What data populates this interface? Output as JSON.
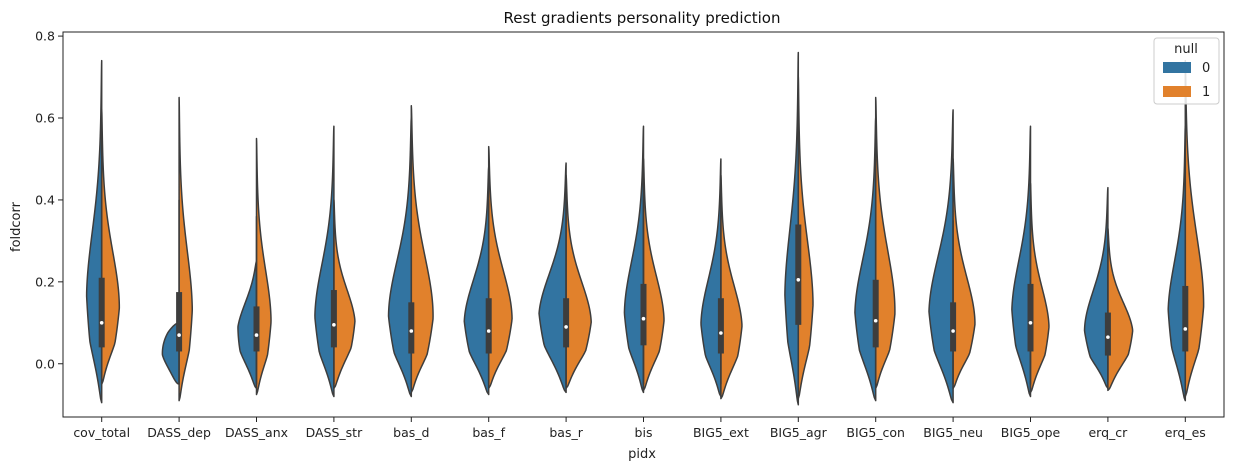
{
  "chart_data": {
    "type": "violin",
    "split": true,
    "title": "Rest gradients personality prediction",
    "xlabel": "pidx",
    "ylabel": "foldcorr",
    "ylim": [
      -0.13,
      0.81
    ],
    "yticks": [
      "0.0",
      "0.2",
      "0.4",
      "0.6",
      "0.8"
    ],
    "ytick_values": [
      0.0,
      0.2,
      0.4,
      0.6,
      0.8
    ],
    "grid": false,
    "legend": {
      "title": "null",
      "placement": "top-right",
      "entries": [
        {
          "label": "0",
          "color": "#3274a1"
        },
        {
          "label": "1",
          "color": "#e1812c"
        }
      ]
    },
    "categories": [
      "cov_total",
      "DASS_dep",
      "DASS_anx",
      "DASS_str",
      "bas_d",
      "bas_f",
      "bas_r",
      "bis",
      "BIG5_ext",
      "BIG5_agr",
      "BIG5_con",
      "BIG5_neu",
      "BIG5_ope",
      "erq_cr",
      "erq_es"
    ],
    "series": [
      {
        "name": "0",
        "color": "#3274a1",
        "side": "left",
        "min": [
          -0.095,
          -0.05,
          -0.06,
          -0.08,
          -0.08,
          -0.075,
          -0.07,
          -0.07,
          -0.08,
          -0.1,
          -0.09,
          -0.095,
          -0.08,
          -0.06,
          -0.09
        ],
        "max": [
          0.74,
          0.1,
          0.25,
          0.58,
          0.6,
          0.48,
          0.49,
          0.58,
          0.5,
          0.76,
          0.6,
          0.62,
          0.58,
          0.43,
          0.58
        ],
        "mode": [
          0.1,
          0.05,
          0.06,
          0.06,
          0.06,
          0.06,
          0.08,
          0.07,
          0.05,
          0.1,
          0.07,
          0.07,
          0.08,
          0.04,
          0.08
        ],
        "peak_width": [
          0.45,
          0.45,
          0.5,
          0.58,
          0.7,
          0.72,
          0.78,
          0.58,
          0.6,
          0.4,
          0.62,
          0.72,
          0.55,
          0.72,
          0.5
        ]
      },
      {
        "name": "1",
        "color": "#e1812c",
        "side": "right",
        "min": [
          -0.05,
          -0.09,
          -0.075,
          -0.06,
          -0.07,
          -0.06,
          -0.06,
          -0.065,
          -0.085,
          -0.085,
          -0.06,
          -0.06,
          -0.07,
          -0.065,
          -0.08
        ],
        "max": [
          0.62,
          0.65,
          0.55,
          0.4,
          0.63,
          0.53,
          0.46,
          0.5,
          0.46,
          0.7,
          0.65,
          0.5,
          0.44,
          0.33,
          0.74
        ],
        "mode": [
          0.08,
          0.07,
          0.05,
          0.07,
          0.05,
          0.06,
          0.06,
          0.06,
          0.05,
          0.08,
          0.06,
          0.05,
          0.05,
          0.05,
          0.07
        ],
        "peak_width": [
          0.55,
          0.4,
          0.45,
          0.6,
          0.7,
          0.72,
          0.75,
          0.62,
          0.62,
          0.45,
          0.62,
          0.68,
          0.55,
          0.7,
          0.58
        ]
      }
    ],
    "box": {
      "q1": [
        0.04,
        0.03,
        0.03,
        0.04,
        0.025,
        0.025,
        0.04,
        0.045,
        0.025,
        0.095,
        0.04,
        0.03,
        0.03,
        0.02,
        0.03
      ],
      "median": [
        0.1,
        0.07,
        0.07,
        0.095,
        0.08,
        0.08,
        0.09,
        0.11,
        0.075,
        0.205,
        0.105,
        0.08,
        0.1,
        0.065,
        0.085
      ],
      "q3": [
        0.21,
        0.175,
        0.14,
        0.18,
        0.15,
        0.16,
        0.16,
        0.195,
        0.16,
        0.34,
        0.205,
        0.15,
        0.195,
        0.125,
        0.19
      ],
      "wmin": [
        -0.04,
        -0.05,
        -0.05,
        -0.05,
        -0.05,
        -0.05,
        -0.05,
        -0.05,
        -0.05,
        -0.06,
        -0.05,
        -0.05,
        -0.05,
        -0.04,
        -0.05
      ],
      "wmax": [
        0.62,
        0.4,
        0.36,
        0.34,
        0.34,
        0.4,
        0.42,
        0.45,
        0.36,
        0.55,
        0.5,
        0.35,
        0.4,
        0.28,
        0.45
      ]
    }
  }
}
